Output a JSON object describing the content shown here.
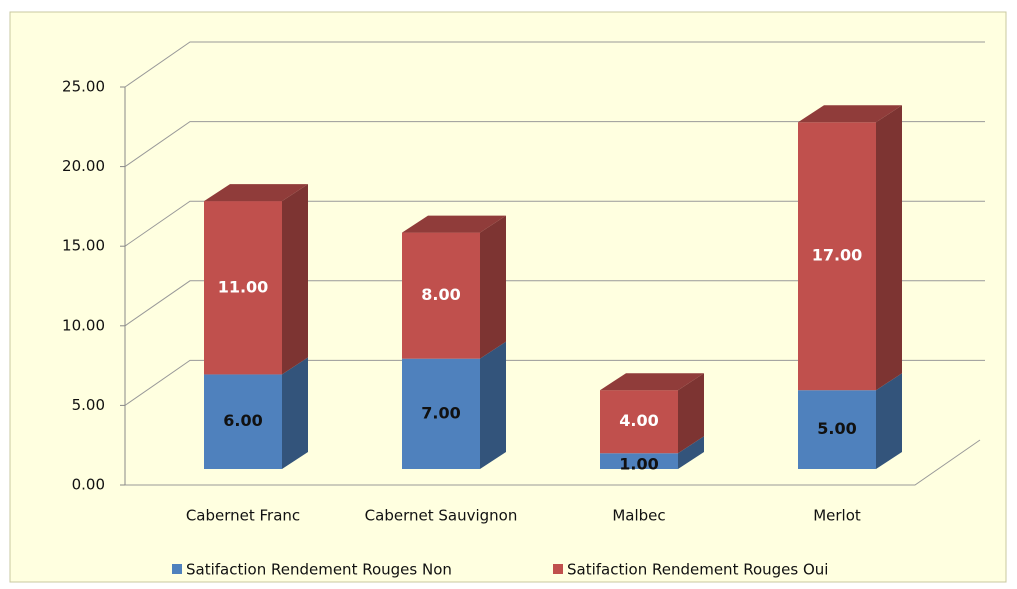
{
  "chart_data": {
    "type": "bar3d_stacked",
    "categories": [
      "Cabernet Franc",
      "Cabernet Sauvignon",
      "Malbec",
      "Merlot"
    ],
    "series": [
      {
        "name": "Satifaction Rendement Rouges Non",
        "color": "#4f81bd",
        "values": [
          6,
          7,
          1,
          5
        ],
        "value_labels": [
          "6.00",
          "7.00",
          "1.00",
          "5.00"
        ]
      },
      {
        "name": "Satifaction Rendement Rouges Oui",
        "color": "#c0504d",
        "values": [
          11,
          8,
          4,
          17
        ],
        "value_labels": [
          "11.00",
          "8.00",
          "4.00",
          "17.00"
        ]
      }
    ],
    "ylim": [
      0,
      25
    ],
    "yticks": [
      {
        "value": 0,
        "label": "0.00"
      },
      {
        "value": 5,
        "label": "5.00"
      },
      {
        "value": 10,
        "label": "10.00"
      },
      {
        "value": 15,
        "label": "15.00"
      },
      {
        "value": 20,
        "label": "20.00"
      },
      {
        "value": 25,
        "label": "25.00"
      }
    ],
    "grid": true,
    "legend": "bottom"
  }
}
